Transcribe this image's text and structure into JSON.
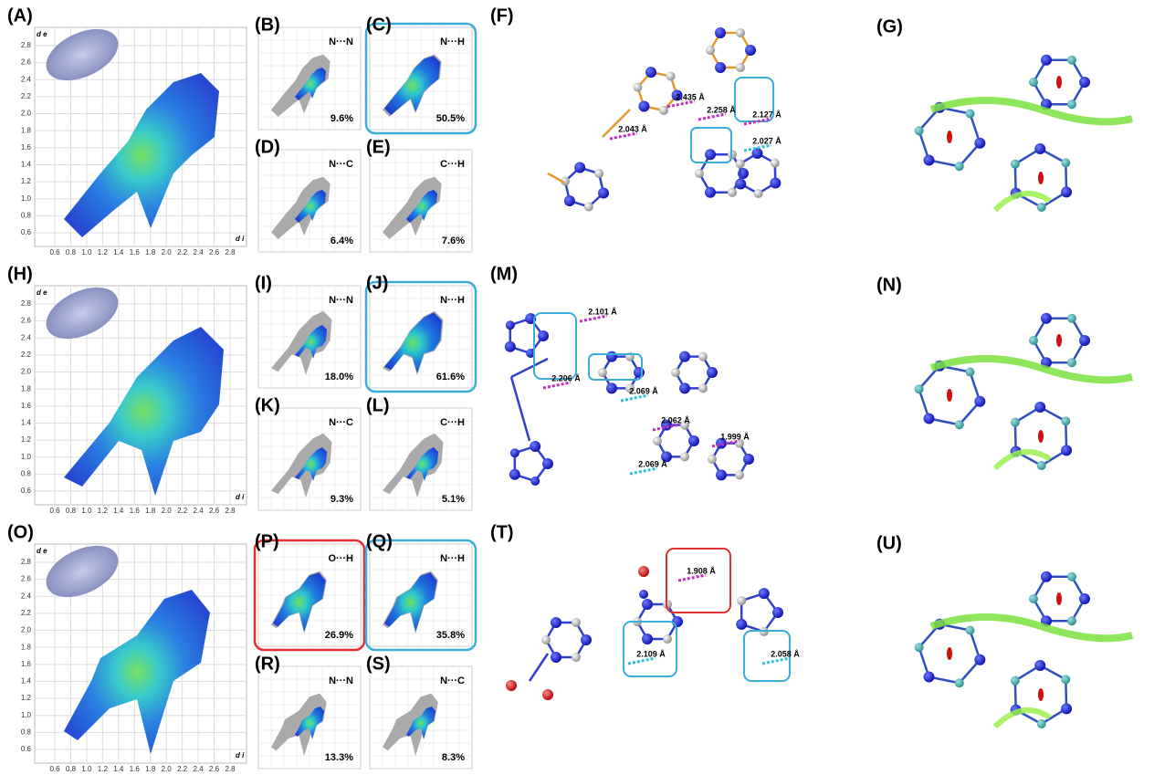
{
  "rows": [
    {
      "main": {
        "label": "(A)",
        "ylabel": "d e",
        "xlabel": "d i",
        "yticks": [
          "2.8",
          "2.6",
          "2.4",
          "2.2",
          "2.0",
          "1.8",
          "1.6",
          "1.4",
          "1.2",
          "1.0",
          "0.8",
          "0.6"
        ],
        "xticks": [
          "0.6",
          "0.8",
          "1.0",
          "1.2",
          "1.4",
          "1.6",
          "1.8",
          "2.0",
          "2.2",
          "2.4",
          "2.6",
          "2.8"
        ]
      },
      "plots": [
        {
          "label": "(B)",
          "contact": "N···N",
          "percent": "9.6%"
        },
        {
          "label": "(C)",
          "contact": "N···H",
          "percent": "50.5%",
          "highlight": "#3aaed8"
        },
        {
          "label": "(D)",
          "contact": "N···C",
          "percent": "6.4%"
        },
        {
          "label": "(E)",
          "contact": "C···H",
          "percent": "7.6%"
        }
      ],
      "structure": {
        "label": "(F)",
        "distances": [
          "2.043 Å",
          "2.435 Å",
          "2.258 Å",
          "2.127 Å",
          "2.027 Å"
        ]
      },
      "nci": {
        "label": "(G)"
      }
    },
    {
      "main": {
        "label": "(H)",
        "ylabel": "d e",
        "xlabel": "d i",
        "yticks": [
          "2.8",
          "2.6",
          "2.4",
          "2.2",
          "2.0",
          "1.8",
          "1.6",
          "1.4",
          "1.2",
          "1.0",
          "0.8",
          "0.6"
        ],
        "xticks": [
          "0.6",
          "0.8",
          "1.0",
          "1.2",
          "1.4",
          "1.6",
          "1.8",
          "2.0",
          "2.2",
          "2.4",
          "2.6",
          "2.8"
        ]
      },
      "plots": [
        {
          "label": "(I)",
          "contact": "N···N",
          "percent": "18.0%"
        },
        {
          "label": "(J)",
          "contact": "N···H",
          "percent": "61.6%",
          "highlight": "#3aaed8"
        },
        {
          "label": "(K)",
          "contact": "N···C",
          "percent": "9.3%"
        },
        {
          "label": "(L)",
          "contact": "C···H",
          "percent": "5.1%"
        }
      ],
      "structure": {
        "label": "(M)",
        "distances": [
          "2.101 Å",
          "2.206 Å",
          "2.069 Å",
          "2.062 Å",
          "1.999 Å",
          "2.069 Å"
        ]
      },
      "nci": {
        "label": "(N)"
      }
    },
    {
      "main": {
        "label": "(O)",
        "ylabel": "d e",
        "xlabel": "d i",
        "yticks": [
          "2.8",
          "2.6",
          "2.4",
          "2.2",
          "2.0",
          "1.8",
          "1.6",
          "1.4",
          "1.2",
          "1.0",
          "0.8",
          "0.6"
        ],
        "xticks": [
          "0.6",
          "0.8",
          "1.0",
          "1.2",
          "1.4",
          "1.6",
          "1.8",
          "2.0",
          "2.2",
          "2.4",
          "2.6",
          "2.8"
        ]
      },
      "plots": [
        {
          "label": "(P)",
          "contact": "O···H",
          "percent": "26.9%",
          "highlight": "#e03030"
        },
        {
          "label": "(Q)",
          "contact": "N···H",
          "percent": "35.8%",
          "highlight": "#3aaed8"
        },
        {
          "label": "(R)",
          "contact": "N···N",
          "percent": "13.3%"
        },
        {
          "label": "(S)",
          "contact": "N···C",
          "percent": "8.3%"
        }
      ],
      "structure": {
        "label": "(T)",
        "distances": [
          "1.908 Å",
          "2.109 Å",
          "2.058 Å"
        ]
      },
      "nci": {
        "label": "(U)"
      }
    }
  ]
}
